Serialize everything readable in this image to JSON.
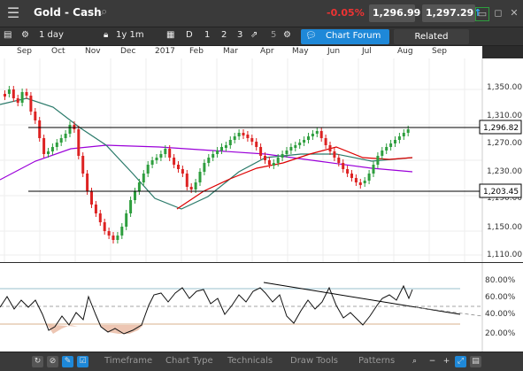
{
  "titlebar": {
    "title": "Gold - Cash",
    "change": "-0.05%",
    "sell": "1,296.99",
    "buy": "1,297.29",
    "sell_arrow": "↓",
    "buy_arrow": "↑",
    "menu_icon": "hamburger-icon"
  },
  "toolbar": {
    "interval": "1 day",
    "range": "1y 1m",
    "d": "D",
    "n1": "1",
    "n2": "2",
    "n3": "3",
    "n5": "5",
    "forum": "Chart Forum",
    "related": "Related"
  },
  "months": [
    "Sep",
    "Oct",
    "Nov",
    "Dec",
    "2017",
    "Feb",
    "Mar",
    "Apr",
    "May",
    "Jun",
    "Jul",
    "Aug",
    "Sep"
  ],
  "price_axis": {
    "ticks": [
      "1,350.00",
      "1,310.00",
      "1,270.00",
      "1,230.00",
      "1,190.00",
      "1,150.00",
      "1,110.00"
    ],
    "line_high": "1,296.82",
    "line_low": "1,203.45"
  },
  "osc_axis": {
    "ticks": [
      "80.00%",
      "60.00%",
      "40.00%",
      "20.00%"
    ]
  },
  "bottombar": {
    "timeframe": "Timeframe",
    "chart_type": "Chart Type",
    "technicals": "Technicals",
    "draw_tools": "Draw Tools",
    "patterns": "Patterns"
  },
  "colors": {
    "up": "#2e9e3e",
    "down": "#d22",
    "ma_fast": "#d00",
    "ma_mid": "#2a7a6a",
    "ma_slow": "#9b00d9",
    "accent": "#1e88d8"
  }
}
